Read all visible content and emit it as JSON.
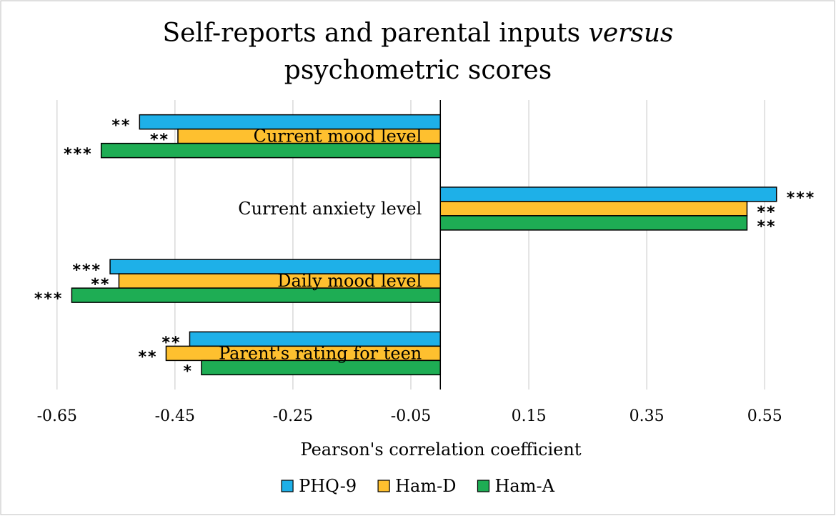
{
  "chart_data": {
    "type": "bar",
    "orientation": "horizontal",
    "title": [
      "Self-reports and parental inputs ",
      "versus",
      "psychometric scores"
    ],
    "xlabel": "Pearson's correlation coefficient",
    "xlim": [
      -0.72,
      0.62
    ],
    "xticks": [
      -0.65,
      -0.45,
      -0.25,
      -0.05,
      0.15,
      0.35,
      0.55
    ],
    "xtick_labels": [
      "-0.65",
      "-0.45",
      "-0.25",
      "-0.05",
      "0.15",
      "0.35",
      "0.55"
    ],
    "grid": "vertical",
    "legend_position": "bottom",
    "categories": [
      "Current mood level",
      "Current anxiety level",
      "Daily mood level",
      "Parent's rating for teen"
    ],
    "series": [
      {
        "name": "PHQ-9",
        "color": "#1EB0E8",
        "values": [
          -0.51,
          0.57,
          -0.56,
          -0.425
        ],
        "significance": [
          "**",
          "***",
          "***",
          "**"
        ]
      },
      {
        "name": "Ham-D",
        "color": "#FEC02F",
        "values": [
          -0.445,
          0.52,
          -0.545,
          -0.465
        ],
        "significance": [
          "**",
          "**",
          "**",
          "**"
        ]
      },
      {
        "name": "Ham-A",
        "color": "#1EAD54",
        "values": [
          -0.575,
          0.52,
          -0.625,
          -0.405
        ],
        "significance": [
          "***",
          "**",
          "***",
          "*"
        ]
      }
    ]
  }
}
